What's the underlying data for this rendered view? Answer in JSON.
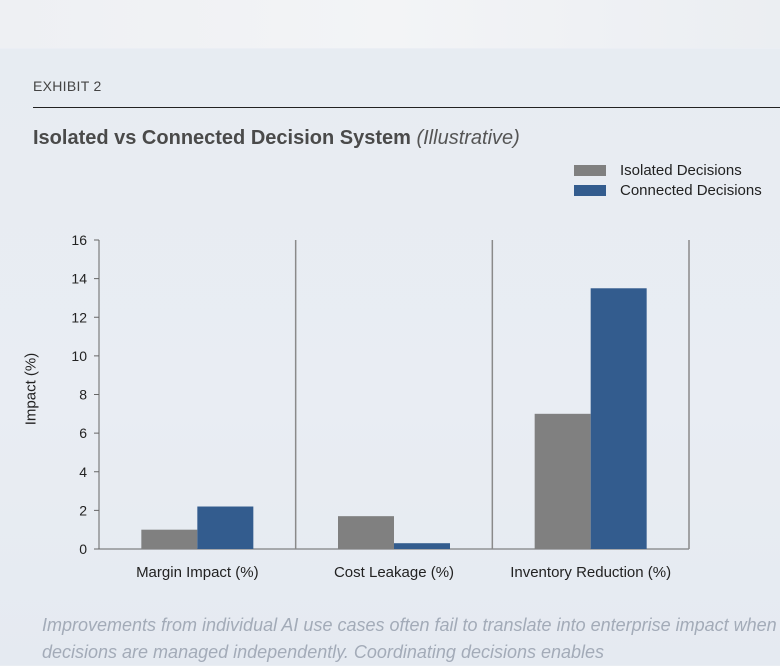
{
  "header": {
    "exhibit": "EXHIBIT 2",
    "title": "Isolated vs Connected Decision System",
    "title_note": "(Illustrative)"
  },
  "caption": "Improvements from individual AI use cases often fail to translate into enterprise impact when decisions are managed independently. Coordinating decisions enables",
  "chart_data": {
    "type": "bar",
    "title": "Isolated vs Connected Decision System (Illustrative)",
    "xlabel": "",
    "ylabel": "Impact (%)",
    "ylim": [
      0,
      16
    ],
    "yticks": [
      0,
      2,
      4,
      6,
      8,
      10,
      12,
      14,
      16
    ],
    "categories": [
      "Margin Impact (%)",
      "Cost Leakage (%)",
      "Inventory Reduction (%)"
    ],
    "series": [
      {
        "name": "Isolated Decisions",
        "color": "#808080",
        "values": [
          1.0,
          1.7,
          7.0
        ]
      },
      {
        "name": "Connected Decisions",
        "color": "#335c8e",
        "values": [
          2.2,
          0.3,
          13.5
        ]
      }
    ],
    "legend": "top-right",
    "grid": false
  }
}
